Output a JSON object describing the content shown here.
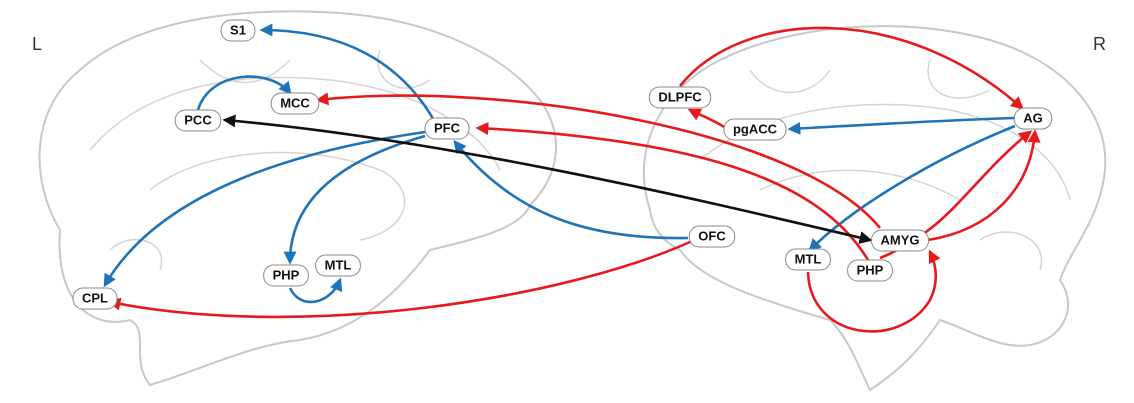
{
  "side_labels": {
    "left": "L",
    "right": "R"
  },
  "nodes": [
    {
      "label": "S1"
    },
    {
      "label": "MCC"
    },
    {
      "label": "PCC"
    },
    {
      "label": "PFC"
    },
    {
      "label": "PHP"
    },
    {
      "label": "MTL"
    },
    {
      "label": "CPL"
    },
    {
      "label": "DLPFC"
    },
    {
      "label": "pgACC"
    },
    {
      "label": "AG"
    },
    {
      "label": "OFC"
    },
    {
      "label": "AMYG"
    },
    {
      "label": "MTL"
    },
    {
      "label": "PHP"
    }
  ]
}
